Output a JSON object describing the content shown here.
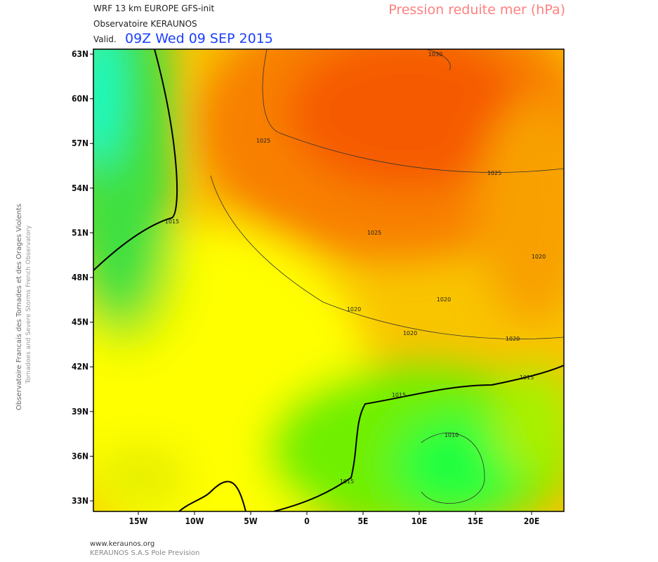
{
  "header": {
    "model": "WRF 13 km EUROPE  GFS-init",
    "source": "Observatoire KERAUNOS",
    "valid_prefix": "Valid.",
    "valid_time": "09Z Wed 09 SEP 2015",
    "parameter": "Pression reduite mer (hPa)"
  },
  "side": {
    "french": "Observatoire Francais des Tornades et des Orages Violents",
    "english": "Tornadoes and Severe Storms French Observatory"
  },
  "map": {
    "lat_labels": [
      "63N",
      "60N",
      "57N",
      "54N",
      "51N",
      "48N",
      "45N",
      "42N",
      "39N",
      "36N",
      "33N"
    ],
    "lon_labels": [
      "15W",
      "10W",
      "5W",
      "0",
      "5E",
      "10E",
      "15E",
      "20E"
    ],
    "contour_labels": [
      "1030",
      "1025",
      "1025",
      "1025",
      "1015",
      "1020",
      "1020",
      "1020",
      "1020",
      "1020",
      "1015",
      "1015",
      "1015",
      "1010"
    ]
  },
  "footer": {
    "site": "www.keraunos.org",
    "company": "KERAUNOS S.A.S Pole Prevision"
  }
}
